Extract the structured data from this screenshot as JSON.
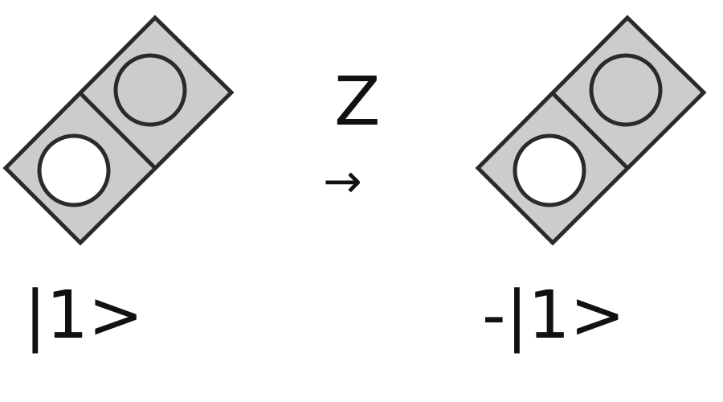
{
  "operator": {
    "name": "Z",
    "arrow": "→"
  },
  "states": {
    "before": {
      "label": "|1>"
    },
    "after": {
      "label": "-|1>"
    }
  },
  "colors": {
    "cell_fill": "#cccccc",
    "outline": "#2a2a2a",
    "empty_dot": "#ffffff",
    "filled_dot": "#cccccc",
    "text": "#111111"
  },
  "icons": {
    "dot_empty": "white-circle-icon",
    "dot_filled": "gray-circle-icon"
  }
}
